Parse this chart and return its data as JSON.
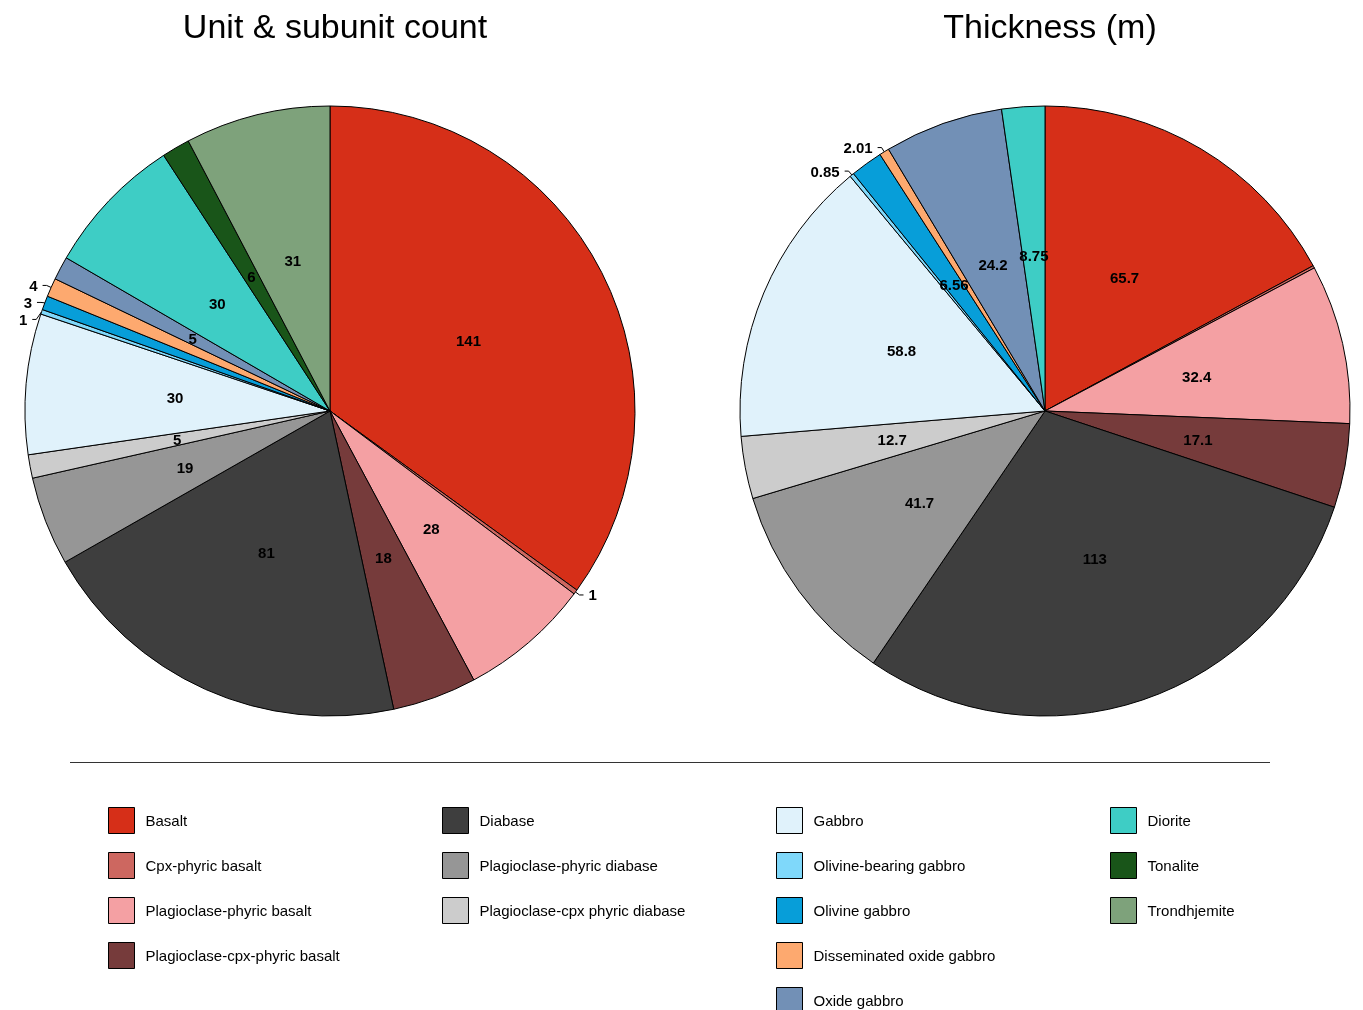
{
  "chart_data": {
    "type": "pie",
    "legend": "bottom",
    "categories": [
      "Basalt",
      "Cpx-phyric basalt",
      "Plagioclase-phyric basalt",
      "Plagioclase-cpx-phyric basalt",
      "Diabase",
      "Plagioclase-phyric diabase",
      "Plagioclase-cpx phyric diabase",
      "Gabbro",
      "Olivine-bearing gabbro",
      "Olivine gabbro",
      "Disseminated oxide gabbro",
      "Oxide gabbro",
      "Diorite",
      "Tonalite",
      "Trondhjemite"
    ],
    "colors": [
      "#d62f18",
      "#cd6760",
      "#f4a0a3",
      "#763b3b",
      "#3e3e3e",
      "#969696",
      "#cccccc",
      "#e0f2fb",
      "#7fd8fa",
      "#079ed9",
      "#fda96f",
      "#7290b6",
      "#3ecdc5",
      "#195519",
      "#7ea27b"
    ],
    "series": [
      {
        "name": "Unit & subunit count",
        "values": [
          141,
          1,
          28,
          18,
          81,
          19,
          5,
          30,
          1,
          3,
          4,
          5,
          30,
          6,
          31
        ],
        "value_labels": [
          "141",
          "1",
          "28",
          "18",
          "81",
          "19",
          "5",
          "30",
          "1",
          "3",
          "4",
          "5",
          "30",
          "6",
          "31"
        ]
      },
      {
        "name": "Thickness (m)",
        "values": [
          65.7,
          0.5,
          32.4,
          17.1,
          113,
          41.7,
          12.7,
          58.8,
          0.85,
          6.56,
          2.01,
          24.2,
          8.75,
          null,
          null
        ],
        "value_labels": [
          "65.7",
          null,
          "32.4",
          "17.1",
          "113",
          "41.7",
          "12.7",
          "58.8",
          "0.85",
          "6.56",
          "2.01",
          "24.2",
          "8.75",
          null,
          null
        ]
      }
    ]
  }
}
